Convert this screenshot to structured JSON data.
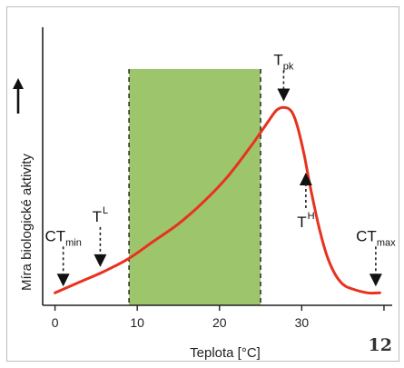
{
  "figure_number": "12",
  "chart_data": {
    "type": "line",
    "title": "",
    "xlabel": "Teplota [°C]",
    "ylabel": "Míra biologické aktivity",
    "xlim": [
      -1.5,
      41
    ],
    "xticks": [
      0,
      10,
      20,
      30,
      40
    ],
    "xtick_labels": [
      "0",
      "10",
      "20",
      "30"
    ],
    "y_axis_ticks": false,
    "ylim": [
      0,
      1
    ],
    "grid": false,
    "shaded_range": {
      "x": [
        9,
        25
      ],
      "color": "#9dc56b"
    },
    "series": [
      {
        "color": "#e8321e",
        "x": [
          0,
          3,
          6,
          9,
          12,
          15,
          18,
          21,
          24,
          26,
          27,
          28,
          28.8,
          29.5,
          30.3,
          31,
          32,
          33,
          34,
          35,
          36,
          38,
          39.5
        ],
        "y": [
          0.02,
          0.07,
          0.12,
          0.18,
          0.26,
          0.34,
          0.44,
          0.56,
          0.71,
          0.82,
          0.87,
          0.88,
          0.86,
          0.79,
          0.66,
          0.52,
          0.34,
          0.2,
          0.11,
          0.06,
          0.04,
          0.02,
          0.02
        ]
      }
    ],
    "annotations": [
      {
        "id": "ctmin",
        "main": "CT",
        "sub": "min",
        "sup": "",
        "x": 1,
        "y": 0.02,
        "arrow": "dashed-down",
        "label_above": true
      },
      {
        "id": "tl",
        "main": "T",
        "sub": "",
        "sup": "L",
        "x": 5.5,
        "y": 0.11,
        "arrow": "dashed-down",
        "label_above": true
      },
      {
        "id": "tpk",
        "main": "T",
        "sub": "pk",
        "sup": "",
        "x": 27.8,
        "y": 0.88,
        "arrow": "dashed-down",
        "label_above": true
      },
      {
        "id": "th",
        "main": "T",
        "sub": "",
        "sup": "H",
        "x": 30.5,
        "y": 0.62,
        "arrow": "solid-up",
        "label_above": false
      },
      {
        "id": "ctmax",
        "main": "CT",
        "sub": "max",
        "sup": "",
        "x": 39,
        "y": 0.02,
        "arrow": "dashed-down",
        "label_above": true
      }
    ]
  }
}
